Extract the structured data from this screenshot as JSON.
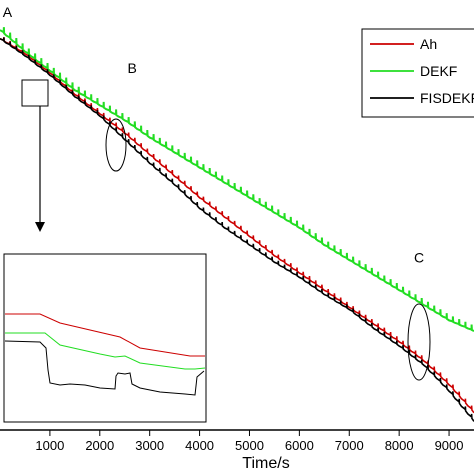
{
  "chart_data": {
    "type": "line",
    "xlabel": "Time/s",
    "ylabel": "",
    "xlim": [
      0,
      9500
    ],
    "ylim": [
      0,
      100
    ],
    "xticks": [
      1000,
      2000,
      3000,
      4000,
      5000,
      6000,
      7000,
      8000,
      9000
    ],
    "xtick_labels": [
      "1000",
      "2000",
      "3000",
      "4000",
      "5000",
      "6000",
      "7000",
      "8000",
      "9000"
    ],
    "grid": false,
    "legend_position": "top-right",
    "series": [
      {
        "name": "Ah",
        "color": "#cc0000",
        "x": [
          0,
          500,
          1000,
          1500,
          2000,
          2500,
          3000,
          3500,
          4000,
          4500,
          5000,
          5500,
          6000,
          6500,
          7000,
          7500,
          8000,
          8500,
          9000,
          9500
        ],
        "y": [
          91,
          87.5,
          83,
          78,
          73.5,
          69,
          64,
          59,
          54,
          49.5,
          45,
          40.5,
          36.5,
          32.5,
          28.5,
          24.5,
          20.5,
          16,
          10.5,
          4
        ]
      },
      {
        "name": "DEKF",
        "color": "#22dd22",
        "x": [
          0,
          500,
          1000,
          1500,
          2000,
          2500,
          3000,
          3500,
          4000,
          4500,
          5000,
          5500,
          6000,
          6500,
          7000,
          7500,
          8000,
          8500,
          9000,
          9500
        ],
        "y": [
          93,
          88,
          83.5,
          79,
          75.5,
          72,
          68,
          64.5,
          61,
          57.5,
          54,
          50.5,
          47,
          43,
          39.5,
          36,
          32.5,
          29,
          25.5,
          23
        ]
      },
      {
        "name": "FISDEKF",
        "color": "#000000",
        "x": [
          0,
          500,
          1000,
          1500,
          2000,
          2500,
          3000,
          3500,
          4000,
          4500,
          5000,
          5500,
          6000,
          6500,
          7000,
          7500,
          8000,
          8500,
          9000,
          9500
        ],
        "y": [
          91,
          87,
          82.5,
          77.5,
          73,
          67.5,
          62,
          57,
          51.5,
          47,
          43,
          39,
          35.5,
          31.5,
          28,
          23.5,
          19.5,
          15,
          9,
          2
        ]
      }
    ],
    "annotations": [
      {
        "text": "A",
        "x": 150,
        "y": 96
      },
      {
        "text": "B",
        "x": 2650,
        "y": 83
      },
      {
        "text": "C",
        "x": 8400,
        "y": 39
      }
    ]
  }
}
